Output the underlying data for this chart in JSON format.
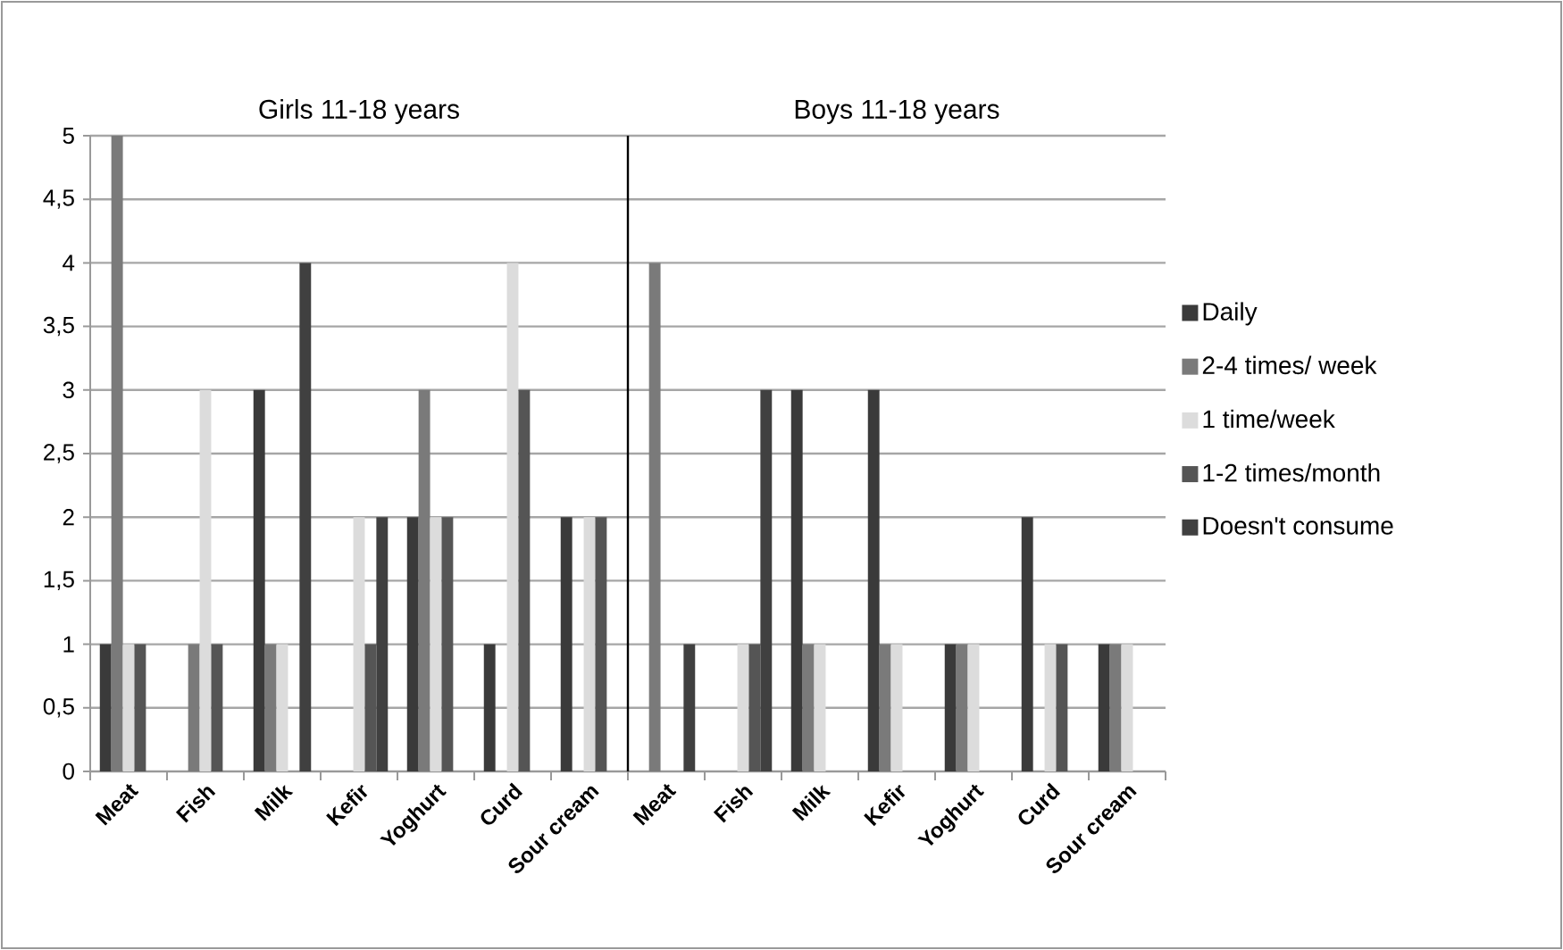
{
  "chart_data": [
    {
      "type": "bar",
      "title": "Girls 11-18 years",
      "categories": [
        "Meat",
        "Fish",
        "Milk",
        "Kefir",
        "Yoghurt",
        "Curd",
        "Sour cream"
      ],
      "series": [
        {
          "color": "#3a3a3a",
          "values": [
            1,
            0,
            3,
            0,
            2,
            1,
            2
          ]
        },
        {
          "color": "#7a7a7a",
          "values": [
            5,
            1,
            1,
            0,
            3,
            0,
            0
          ]
        },
        {
          "color": "#dcdcdc",
          "values": [
            1,
            3,
            1,
            2,
            2,
            4,
            2
          ]
        },
        {
          "color": "#555555",
          "values": [
            1,
            1,
            0,
            1,
            2,
            3,
            2
          ]
        },
        {
          "color": "#404040",
          "values": [
            0,
            0,
            4,
            2,
            0,
            0,
            0
          ]
        }
      ],
      "ylim": [
        0,
        5
      ],
      "yticks": [
        0,
        {
          "value": 0.5,
          "label": "0,5"
        },
        1,
        {
          "value": 1.5,
          "label": "1,5"
        },
        2,
        {
          "value": 2.5,
          "label": "2,5"
        },
        3,
        {
          "value": 3.5,
          "label": "3,5"
        },
        4,
        {
          "value": 4.5,
          "label": "4,5"
        },
        5
      ],
      "grid": "y"
    },
    {
      "type": "bar",
      "title": "Boys 11-18 years",
      "categories": [
        "Meat",
        "Fish",
        "Milk",
        "Kefir",
        "Yoghurt",
        "Curd",
        "Sour cream"
      ],
      "series": [
        {
          "name": "Daily",
          "color": "#3a3a3a",
          "values": [
            0,
            0,
            3,
            3,
            1,
            2,
            1
          ]
        },
        {
          "name": "2-4 times/ week",
          "color": "#7a7a7a",
          "values": [
            4,
            0,
            1,
            1,
            1,
            0,
            1
          ]
        },
        {
          "name": "1 time/week",
          "color": "#dcdcdc",
          "values": [
            0,
            1,
            1,
            1,
            1,
            1,
            1
          ]
        },
        {
          "name": "1-2 times/month",
          "color": "#555555",
          "values": [
            0,
            1,
            0,
            0,
            0,
            1,
            0
          ]
        },
        {
          "name": "Doesn't consume",
          "color": "#404040",
          "values": [
            1,
            3,
            0,
            0,
            0,
            0,
            0
          ]
        }
      ],
      "ylim": [
        0,
        5
      ],
      "yticks": [
        {
          "value": 0,
          "label": null
        },
        {
          "value": 0.5,
          "label": null
        },
        {
          "value": 1,
          "label": null
        },
        {
          "value": 1.5,
          "label": null
        },
        {
          "value": 2,
          "label": null
        },
        {
          "value": 2.5,
          "label": null
        },
        {
          "value": 3,
          "label": null
        },
        {
          "value": 3.5,
          "label": null
        },
        {
          "value": 4,
          "label": null
        },
        {
          "value": 4.5,
          "label": null
        },
        {
          "value": 5,
          "label": null
        }
      ],
      "tick_labels": "x",
      "grid": "y",
      "legend": "right"
    }
  ]
}
